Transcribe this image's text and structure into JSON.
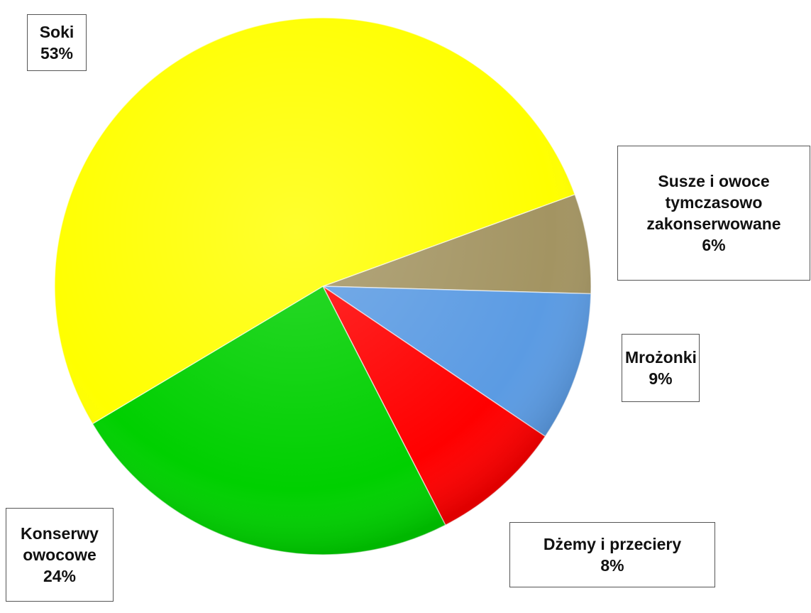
{
  "chart_data": {
    "type": "pie",
    "categories": [
      "Susze i owoce tymczasowo zakonserwowane",
      "Mrożonki",
      "Dżemy i przeciery",
      "Konserwy owocowe",
      "Soki"
    ],
    "values": [
      6,
      9,
      8,
      24,
      53
    ],
    "value_labels": [
      "6%",
      "9%",
      "8%",
      "24%",
      "53%"
    ],
    "colors": [
      "#a39462",
      "#5b9be3",
      "#ff0000",
      "#00d000",
      "#ffff00"
    ]
  }
}
